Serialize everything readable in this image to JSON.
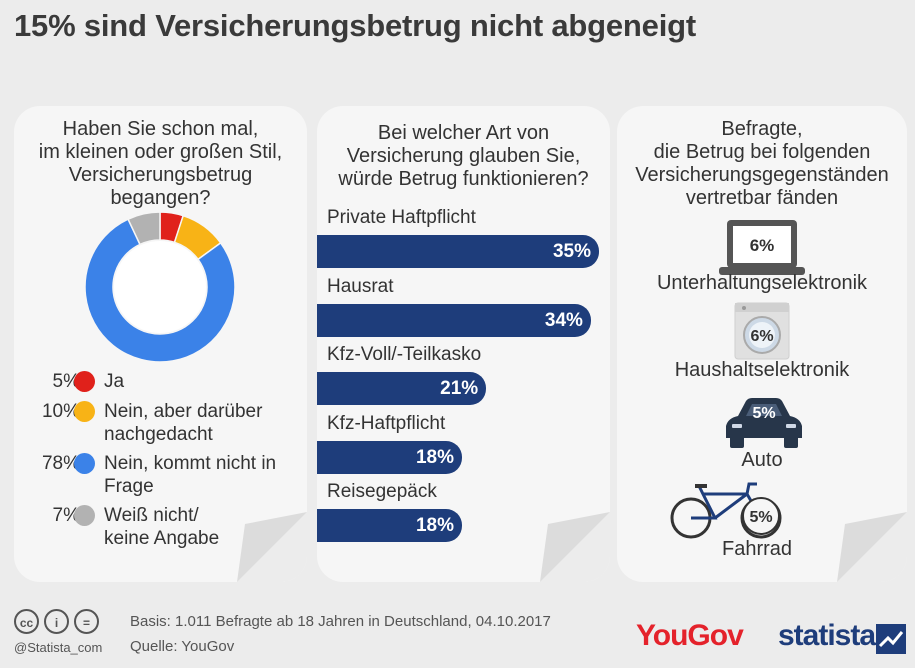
{
  "title": "15% sind Versicherungsbetrug nicht abgeneigt",
  "panel1": {
    "question": [
      "Haben Sie schon mal,",
      "im kleinen oder großen Stil,",
      "Versicherungsbetrug",
      "begangen?"
    ]
  },
  "panel2": {
    "question": [
      "Bei welcher Art von",
      "Versicherung glauben Sie,",
      "würde Betrug funktionieren?"
    ]
  },
  "panel3": {
    "question": [
      "Befragte,",
      "die Betrug bei folgenden",
      "Versicherungsgegenständen",
      "vertretbar fänden"
    ],
    "items": [
      {
        "label": "Unterhaltungselektronik",
        "value": "6%",
        "icon": "laptop-icon"
      },
      {
        "label": "Haushaltselektronik",
        "value": "6%",
        "icon": "washing-machine-icon"
      },
      {
        "label": "Auto",
        "value": "5%",
        "icon": "car-icon"
      },
      {
        "label": "Fahrrad",
        "value": "5%",
        "icon": "bicycle-icon"
      }
    ]
  },
  "chart_data": [
    {
      "type": "pie",
      "donut": true,
      "labels": [
        "Ja",
        "Nein, aber darüber nachgedacht",
        "Nein, kommt nicht in Frage",
        "Weiß nicht/ keine Angabe"
      ],
      "label_lines": [
        [
          "Ja"
        ],
        [
          "Nein, aber darüber",
          "nachgedacht"
        ],
        [
          "Nein, kommt nicht in",
          "Frage"
        ],
        [
          "Weiß nicht/",
          "keine Angabe"
        ]
      ],
      "values": [
        5,
        10,
        78,
        7
      ],
      "value_labels": [
        "5%",
        "10%",
        "78%",
        "7%"
      ],
      "colors": [
        "#e0211b",
        "#f8b316",
        "#3b82e8",
        "#b2b2b2"
      ]
    },
    {
      "type": "bar",
      "orientation": "horizontal",
      "categories": [
        "Private Haftpflicht",
        "Hausrat",
        "Kfz-Voll/-Teilkasko",
        "Kfz-Haftpflicht",
        "Reisegepäck"
      ],
      "values": [
        35,
        34,
        21,
        18,
        18
      ],
      "value_labels": [
        "35%",
        "34%",
        "21%",
        "18%",
        "18%"
      ],
      "color": "#1e3d7b"
    }
  ],
  "footer": {
    "basis": "Basis: 1.011 Befragte ab 18 Jahren in Deutschland, 04.10.2017",
    "source": "Quelle: YouGov",
    "handle": "@Statista_com",
    "cc_icons": [
      "cc",
      "i",
      "="
    ],
    "yougov": "YouGov",
    "statista": "statista"
  }
}
